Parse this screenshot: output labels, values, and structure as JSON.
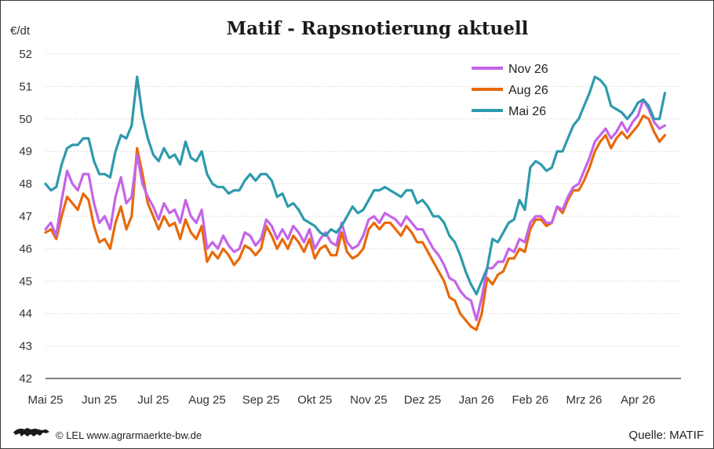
{
  "chart_data": {
    "type": "line",
    "title": "Matif - Rapsnotierung aktuell",
    "unit_label": "€/dt",
    "ylim": [
      42,
      52
    ],
    "yticks": [
      42,
      43,
      44,
      45,
      46,
      47,
      48,
      49,
      50,
      51,
      52
    ],
    "grid": true,
    "legend_position": "top-right",
    "x_tick_labels": [
      "Mai 25",
      "Jun 25",
      "Jul 25",
      "Aug 25",
      "Sep 25",
      "Okt 25",
      "Nov 25",
      "Dez 25",
      "Jan 26",
      "Feb 26",
      "Mrz 26",
      "Apr 26"
    ],
    "x_tick_positions": [
      0,
      1,
      2,
      3,
      4,
      5,
      6,
      7,
      8,
      9,
      10,
      11
    ],
    "x": [
      0.0,
      0.1,
      0.2,
      0.3,
      0.4,
      0.5,
      0.6,
      0.7,
      0.8,
      0.9,
      1.0,
      1.1,
      1.2,
      1.3,
      1.4,
      1.5,
      1.6,
      1.7,
      1.8,
      1.9,
      2.0,
      2.1,
      2.2,
      2.3,
      2.4,
      2.5,
      2.6,
      2.7,
      2.8,
      2.9,
      3.0,
      3.1,
      3.2,
      3.3,
      3.4,
      3.5,
      3.6,
      3.7,
      3.8,
      3.9,
      4.0,
      4.1,
      4.2,
      4.3,
      4.4,
      4.5,
      4.6,
      4.7,
      4.8,
      4.9,
      5.0,
      5.1,
      5.2,
      5.3,
      5.4,
      5.5,
      5.6,
      5.7,
      5.8,
      5.9,
      6.0,
      6.1,
      6.2,
      6.3,
      6.4,
      6.5,
      6.6,
      6.7,
      6.8,
      6.9,
      7.0,
      7.1,
      7.2,
      7.3,
      7.4,
      7.5,
      7.6,
      7.7,
      7.8,
      7.9,
      8.0,
      8.1,
      8.2,
      8.3,
      8.4,
      8.5,
      8.6,
      8.7,
      8.8,
      8.9,
      9.0,
      9.1,
      9.2,
      9.3,
      9.4,
      9.5,
      9.6,
      9.7,
      9.8,
      9.9,
      10.0,
      10.1,
      10.2,
      10.3,
      10.4,
      10.5,
      10.6,
      10.7,
      10.8,
      10.9,
      11.0,
      11.1,
      11.2,
      11.3,
      11.4,
      11.5
    ],
    "series": [
      {
        "name": "Nov 26",
        "color": "#c564e8",
        "values": [
          46.6,
          46.8,
          46.4,
          47.5,
          48.4,
          48.0,
          47.8,
          48.3,
          48.3,
          47.4,
          46.8,
          47.0,
          46.6,
          47.6,
          48.2,
          47.4,
          47.6,
          48.9,
          48.0,
          47.6,
          47.3,
          46.9,
          47.4,
          47.1,
          47.2,
          46.8,
          47.5,
          47.0,
          46.8,
          47.2,
          46.0,
          46.2,
          46.0,
          46.4,
          46.1,
          45.9,
          46.0,
          46.5,
          46.4,
          46.1,
          46.3,
          46.9,
          46.7,
          46.3,
          46.6,
          46.3,
          46.7,
          46.5,
          46.2,
          46.6,
          46.0,
          46.3,
          46.5,
          46.2,
          46.1,
          46.8,
          46.2,
          46.0,
          46.1,
          46.4,
          46.9,
          47.0,
          46.8,
          47.1,
          47.0,
          46.9,
          46.7,
          47.0,
          46.8,
          46.6,
          46.6,
          46.3,
          46.0,
          45.8,
          45.5,
          45.1,
          45.0,
          44.7,
          44.5,
          44.4,
          43.8,
          44.5,
          45.4,
          45.4,
          45.6,
          45.6,
          46.0,
          45.9,
          46.3,
          46.2,
          46.8,
          47.0,
          47.0,
          46.8,
          46.8,
          47.3,
          47.2,
          47.6,
          47.9,
          48.0,
          48.4,
          48.8,
          49.3,
          49.5,
          49.7,
          49.4,
          49.6,
          49.9,
          49.6,
          49.9,
          50.1,
          50.6,
          50.3,
          49.9,
          49.7,
          49.8
        ]
      },
      {
        "name": "Aug 26",
        "color": "#e86a0a",
        "values": [
          46.5,
          46.6,
          46.3,
          47.0,
          47.6,
          47.4,
          47.2,
          47.7,
          47.5,
          46.7,
          46.2,
          46.3,
          46.0,
          46.8,
          47.3,
          46.6,
          47.0,
          49.1,
          48.3,
          47.4,
          47.0,
          46.6,
          47.0,
          46.7,
          46.8,
          46.3,
          46.9,
          46.5,
          46.3,
          46.7,
          45.6,
          45.9,
          45.7,
          46.0,
          45.8,
          45.5,
          45.7,
          46.1,
          46.0,
          45.8,
          46.0,
          46.7,
          46.4,
          46.0,
          46.3,
          46.0,
          46.4,
          46.2,
          45.9,
          46.3,
          45.7,
          46.0,
          46.1,
          45.8,
          45.8,
          46.5,
          45.9,
          45.7,
          45.8,
          46.0,
          46.6,
          46.8,
          46.6,
          46.8,
          46.8,
          46.6,
          46.4,
          46.7,
          46.5,
          46.2,
          46.2,
          45.9,
          45.6,
          45.3,
          45.0,
          44.5,
          44.4,
          44.0,
          43.8,
          43.6,
          43.5,
          44.0,
          45.1,
          44.9,
          45.2,
          45.3,
          45.7,
          45.7,
          46.0,
          45.9,
          46.6,
          46.9,
          46.9,
          46.7,
          46.8,
          47.3,
          47.1,
          47.5,
          47.8,
          47.8,
          48.1,
          48.5,
          49.0,
          49.3,
          49.5,
          49.1,
          49.4,
          49.6,
          49.4,
          49.6,
          49.8,
          50.1,
          50.0,
          49.6,
          49.3,
          49.5
        ]
      },
      {
        "name": "Mai 26",
        "color": "#2e9aad",
        "values": [
          48.0,
          47.8,
          47.9,
          48.6,
          49.1,
          49.2,
          49.2,
          49.4,
          49.4,
          48.7,
          48.3,
          48.3,
          48.2,
          49.0,
          49.5,
          49.4,
          49.8,
          51.3,
          50.1,
          49.4,
          48.9,
          48.7,
          49.1,
          48.8,
          48.9,
          48.6,
          49.3,
          48.8,
          48.7,
          49.0,
          48.3,
          48.0,
          47.9,
          47.9,
          47.7,
          47.8,
          47.8,
          48.1,
          48.3,
          48.1,
          48.3,
          48.3,
          48.1,
          47.6,
          47.7,
          47.3,
          47.4,
          47.2,
          46.9,
          46.8,
          46.7,
          46.5,
          46.4,
          46.6,
          46.5,
          46.7,
          47.0,
          47.3,
          47.1,
          47.2,
          47.5,
          47.8,
          47.8,
          47.9,
          47.8,
          47.7,
          47.6,
          47.8,
          47.8,
          47.4,
          47.5,
          47.3,
          47.0,
          47.0,
          46.8,
          46.4,
          46.2,
          45.8,
          45.3,
          44.9,
          44.6,
          45.0,
          45.4,
          46.3,
          46.2,
          46.5,
          46.8,
          46.9,
          47.5,
          47.2,
          48.5,
          48.7,
          48.6,
          48.4,
          48.5,
          49.0,
          49.0,
          49.4,
          49.8,
          50.0,
          50.4,
          50.8,
          51.3,
          51.2,
          51.0,
          50.4,
          50.3,
          50.2,
          50.0,
          50.2,
          50.5,
          50.6,
          50.4,
          50.0,
          50.0,
          50.8
        ]
      }
    ]
  },
  "footer": {
    "copyright": "© LEL www.agrarmaerkte-bw.de",
    "source": "Quelle: MATIF"
  }
}
